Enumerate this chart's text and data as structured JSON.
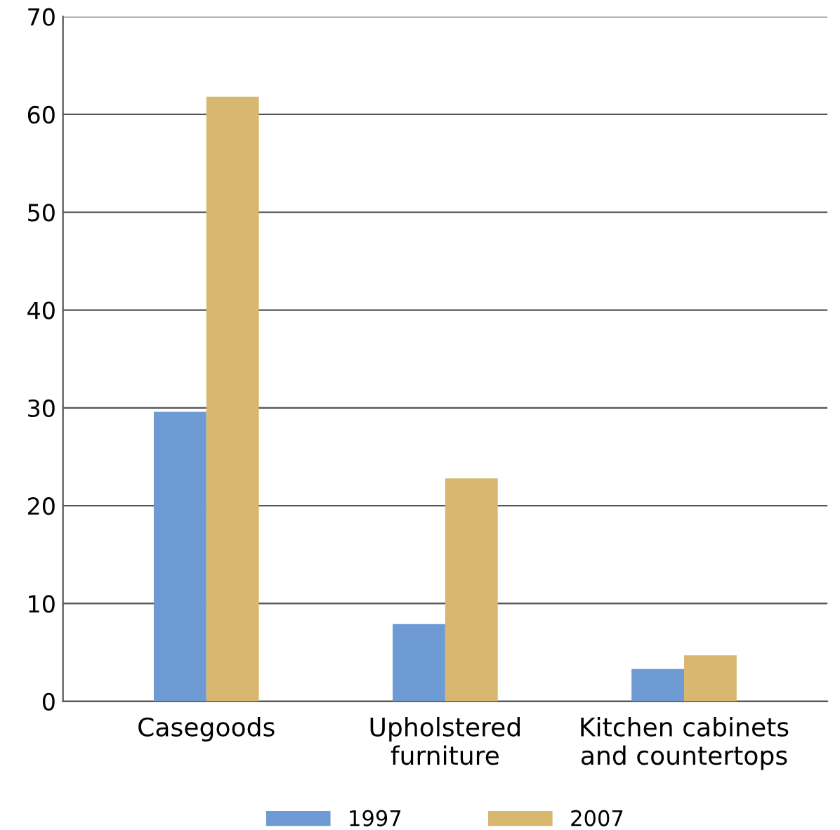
{
  "chart_data": {
    "type": "bar",
    "categories": [
      "Casegoods",
      "Upholstered\nfurniture",
      "Kitchen cabinets\nand countertops"
    ],
    "series": [
      {
        "name": "1997",
        "color": "#6f9bd5",
        "values": [
          29.6,
          7.9,
          3.3
        ]
      },
      {
        "name": "2007",
        "color": "#d8b871",
        "values": [
          61.8,
          22.8,
          4.7
        ]
      }
    ],
    "ylim": [
      0,
      70
    ],
    "yticks": [
      0,
      10,
      20,
      30,
      40,
      50,
      60,
      70
    ],
    "grid": "y",
    "legend": "bottom"
  }
}
